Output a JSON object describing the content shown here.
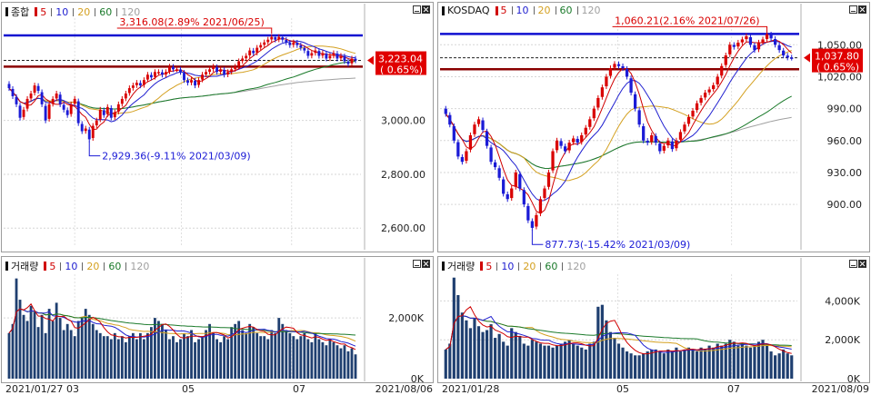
{
  "colors": {
    "up": "#d90000",
    "down": "#1b1bd6",
    "ma5": "#d00000",
    "ma10": "#2020d0",
    "ma20": "#d4a020",
    "ma60": "#1a7a2a",
    "ma120": "#a0a0a0",
    "volume": "#1f3f70",
    "hi_line": "#1010d0",
    "base_line": "#8a0000",
    "tag_bg": "#e00000"
  },
  "charts": [
    {
      "title": "종합",
      "legend": [
        "5",
        "10",
        "20",
        "60",
        "120"
      ],
      "ytick_labels": [
        "3,000.00",
        "2,800.00",
        "2,600.00"
      ],
      "yticks": [
        3000,
        2800,
        2600
      ],
      "ylim": [
        2530,
        3380
      ],
      "high_label": "3,316.08(2.89% 2021/06/25)",
      "high_value": 3316.08,
      "low_label": "2,929.36(-9.11% 2021/03/09)",
      "low_value": 2929.36,
      "current_value": 3223.04,
      "current_label": "3,223.04",
      "current_change": "( 0.65%)",
      "base_value": 3200,
      "volume_title": "거래량",
      "volume_ticks": [
        "2,000K",
        "0K"
      ],
      "volume_tick_values": [
        2000,
        0
      ],
      "volume_max": 3200,
      "x_labels": [
        "2021/01/27",
        "03",
        "05",
        "07"
      ],
      "x_end_label": "2021/08/06"
    },
    {
      "title": "KOSDAQ",
      "legend": [
        "5",
        "10",
        "20",
        "60",
        "120"
      ],
      "ytick_labels": [
        "1,050.00",
        "1,020.00",
        "990.00",
        "960.00",
        "930.00",
        "900.00"
      ],
      "yticks": [
        1050,
        1020,
        990,
        960,
        930,
        900
      ],
      "ylim": [
        860,
        1075
      ],
      "high_label": "1,060.21(2.16% 2021/07/26)",
      "high_value": 1060.21,
      "low_label": "877.73(-15.42% 2021/03/09)",
      "low_value": 877.73,
      "current_value": 1037.8,
      "current_label": "1,037.80",
      "current_change": "( 0.65%)",
      "base_value": 1027,
      "volume_title": "거래량",
      "volume_ticks": [
        "4,000K",
        "2,000K",
        "0K"
      ],
      "volume_tick_values": [
        4000,
        2000,
        0
      ],
      "volume_max": 5000,
      "x_labels": [
        "2021/01/28",
        "05",
        "07"
      ],
      "x_end_label": "2021/08/09"
    }
  ],
  "chart_data": [
    {
      "type": "candlestick",
      "title": "종합",
      "x_range": [
        "2021/01/27",
        "2021/08/06"
      ],
      "ylim": [
        2530,
        3380
      ],
      "close": [
        3120,
        3090,
        3060,
        3010,
        3040,
        3080,
        3100,
        3130,
        3110,
        3060,
        3000,
        3060,
        3080,
        3100,
        3060,
        3040,
        3020,
        3060,
        3080,
        2990,
        2960,
        2970,
        2930,
        2980,
        3000,
        3040,
        3020,
        3050,
        3010,
        3030,
        3060,
        3080,
        3100,
        3120,
        3130,
        3140,
        3130,
        3150,
        3170,
        3160,
        3180,
        3180,
        3170,
        3180,
        3200,
        3190,
        3190,
        3180,
        3150,
        3140,
        3150,
        3130,
        3150,
        3170,
        3180,
        3190,
        3200,
        3180,
        3190,
        3170,
        3180,
        3190,
        3200,
        3220,
        3230,
        3240,
        3260,
        3250,
        3270,
        3280,
        3290,
        3300,
        3310,
        3300,
        3310,
        3300,
        3290,
        3280,
        3290,
        3280,
        3270,
        3260,
        3240,
        3250,
        3260,
        3240,
        3250,
        3230,
        3240,
        3250,
        3230,
        3240,
        3220,
        3210,
        3230,
        3223
      ],
      "volume_K": [
        1500,
        1800,
        3300,
        2600,
        2100,
        1900,
        2400,
        2200,
        1700,
        2100,
        1500,
        2300,
        1900,
        2500,
        2000,
        1600,
        1800,
        1600,
        1400,
        1900,
        2000,
        2300,
        2100,
        1800,
        1600,
        1500,
        1400,
        1400,
        1300,
        1500,
        1300,
        1400,
        1200,
        1400,
        1500,
        1300,
        1500,
        1300,
        1500,
        1700,
        2000,
        1900,
        1800,
        1600,
        1300,
        1400,
        1200,
        1300,
        1500,
        1400,
        1600,
        1200,
        1300,
        1400,
        1600,
        1800,
        1500,
        1300,
        1200,
        1400,
        1300,
        1700,
        1800,
        1900,
        1600,
        1500,
        1800,
        1700,
        1500,
        1400,
        1400,
        1300,
        1600,
        1500,
        2000,
        1800,
        1600,
        1500,
        1400,
        1300,
        1400,
        1500,
        1300,
        1200,
        1500,
        1300,
        1200,
        1100,
        1300,
        1200,
        1100,
        1000,
        1100,
        900,
        1000,
        800
      ],
      "annotations": {
        "high": "3,316.08(2.89% 2021/06/25)",
        "low": "2,929.36(-9.11% 2021/03/09)",
        "current": "3,223.04 ( 0.65%)"
      }
    },
    {
      "type": "candlestick",
      "title": "KOSDAQ",
      "x_range": [
        "2021/01/28",
        "2021/08/09"
      ],
      "ylim": [
        860,
        1075
      ],
      "close": [
        985,
        975,
        960,
        945,
        940,
        950,
        965,
        975,
        980,
        970,
        955,
        940,
        935,
        925,
        910,
        905,
        915,
        930,
        915,
        900,
        885,
        878,
        890,
        905,
        915,
        930,
        950,
        960,
        955,
        950,
        958,
        962,
        958,
        965,
        972,
        980,
        990,
        1000,
        1010,
        1020,
        1028,
        1032,
        1030,
        1028,
        1020,
        1005,
        990,
        975,
        960,
        958,
        965,
        958,
        950,
        955,
        960,
        952,
        960,
        968,
        975,
        982,
        988,
        995,
        1000,
        1005,
        1008,
        1012,
        1020,
        1030,
        1040,
        1050,
        1048,
        1052,
        1055,
        1058,
        1050,
        1045,
        1052,
        1055,
        1060,
        1056,
        1050,
        1045,
        1040,
        1038,
        1037.8
      ],
      "volume_K": [
        1500,
        1800,
        5200,
        4300,
        3400,
        3000,
        2600,
        3100,
        2700,
        2400,
        2500,
        2800,
        2100,
        2300,
        1900,
        1700,
        2600,
        2400,
        2200,
        1800,
        1700,
        2000,
        1900,
        1800,
        1700,
        1700,
        1600,
        1700,
        1800,
        1900,
        2000,
        1800,
        1700,
        1600,
        1500,
        1800,
        1900,
        3700,
        3800,
        3000,
        2400,
        2100,
        1800,
        1600,
        1400,
        1300,
        1200,
        1200,
        1300,
        1400,
        1500,
        1500,
        1400,
        1300,
        1500,
        1400,
        1600,
        1400,
        1500,
        1600,
        1500,
        1400,
        1600,
        1500,
        1700,
        1600,
        1800,
        1700,
        1800,
        2000,
        1900,
        1700,
        1800,
        1700,
        1600,
        1700,
        1900,
        2000,
        1700,
        1400,
        1200,
        1300,
        1500,
        1300,
        1200
      ],
      "annotations": {
        "high": "1,060.21(2.16% 2021/07/26)",
        "low": "877.73(-15.42% 2021/03/09)",
        "current": "1,037.80 ( 0.65%)"
      }
    }
  ]
}
